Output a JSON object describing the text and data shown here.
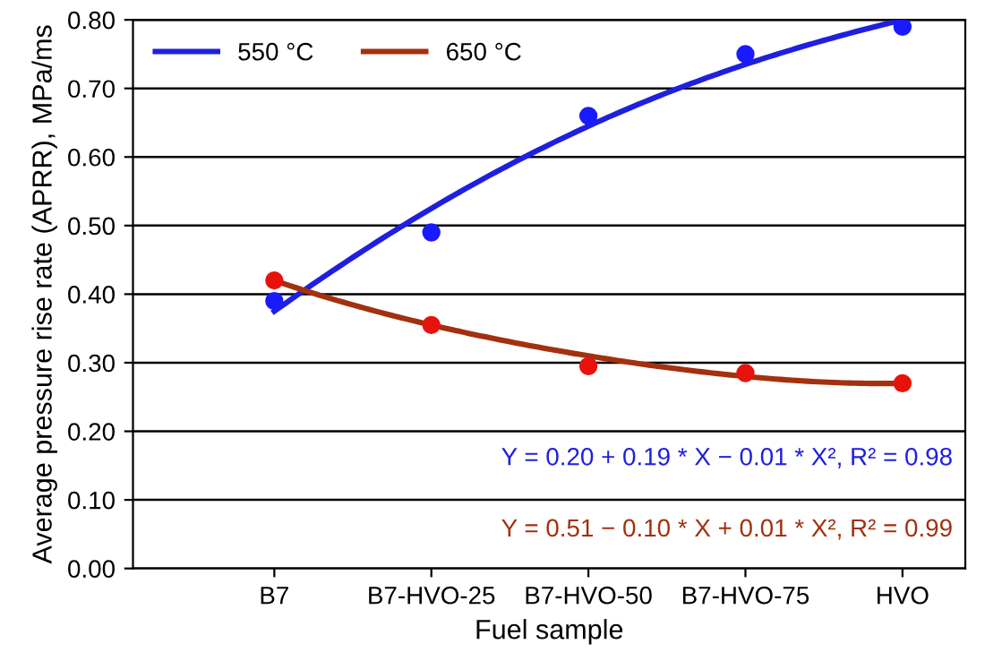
{
  "chart_data": {
    "type": "scatter",
    "xlabel": "Fuel sample",
    "ylabel": "Average pressure rise rate (APRR), MPa/ms",
    "categories": [
      "B7",
      "B7-HVO-25",
      "B7-HVO-50",
      "B7-HVO-75",
      "HVO"
    ],
    "series": [
      {
        "color": "#1a1aff",
        "marker": "circle",
        "values": [
          0.39,
          0.49,
          0.66,
          0.75,
          0.79
        ]
      },
      {
        "color": "#e8120c",
        "marker": "circle",
        "values": [
          0.42,
          0.355,
          0.295,
          0.285,
          0.27
        ]
      },
      {
        "type": "line",
        "name": "550 °C",
        "color": "#1f1fe0",
        "marker": "none",
        "values": [
          0.375,
          0.525,
          0.645,
          0.735,
          0.8
        ]
      },
      {
        "type": "line",
        "name": "650 °C",
        "color": "#a3300f",
        "marker": "none",
        "values": [
          0.42,
          0.355,
          0.31,
          0.28,
          0.27
        ]
      }
    ],
    "ylim": [
      0,
      0.8
    ],
    "yticks": [
      {
        "value": 0,
        "label": "0.00"
      },
      {
        "value": 0.1,
        "label": "0.10"
      },
      {
        "value": 0.2,
        "label": "0.20"
      },
      {
        "value": 0.3,
        "label": "0.30"
      },
      {
        "value": 0.4,
        "label": "0.40"
      },
      {
        "value": 0.5,
        "label": "0.50"
      },
      {
        "value": 0.6,
        "label": "0.60"
      },
      {
        "value": 0.7,
        "label": "0.70"
      },
      {
        "value": 0.8,
        "label": "0.80"
      }
    ],
    "grid": "y",
    "legend": "top left",
    "annotations": [
      "Y = 0.20 + 0.19 * X − 0.01 * X², R² = 0.98",
      "Y = 0.51 − 0.10 * X + 0.01 * X², R² = 0.99"
    ]
  }
}
